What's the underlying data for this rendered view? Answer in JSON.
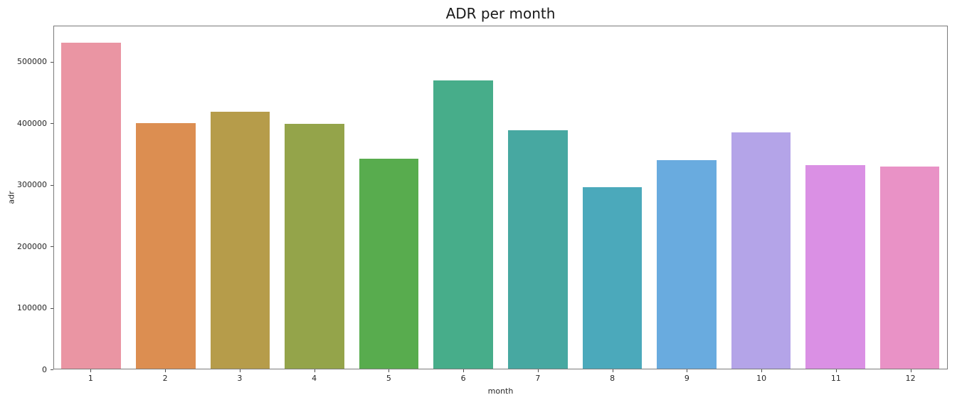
{
  "figure": {
    "title": "ADR per month"
  },
  "chart_data": {
    "type": "bar",
    "title": "ADR per month",
    "xlabel": "month",
    "ylabel": "adr",
    "categories": [
      "1",
      "2",
      "3",
      "4",
      "5",
      "6",
      "7",
      "8",
      "9",
      "10",
      "11",
      "12"
    ],
    "values": [
      532000,
      401000,
      419000,
      400000,
      343000,
      470000,
      389000,
      296000,
      340000,
      385000,
      332000,
      330000
    ],
    "bar_colors": [
      "#ea95a3",
      "#dc8e51",
      "#b69c4a",
      "#94a44a",
      "#58ac4e",
      "#47ad8a",
      "#47a8a1",
      "#4ba9bb",
      "#69abdf",
      "#b4a4e8",
      "#da90e4",
      "#e992c6"
    ],
    "ylim": [
      0,
      558600
    ],
    "yticks": [
      0,
      100000,
      200000,
      300000,
      400000,
      500000
    ],
    "ytick_labels": [
      "0",
      "100000",
      "200000",
      "300000",
      "400000",
      "500000"
    ],
    "grid": false,
    "legend": "none",
    "background_color": "#ffffff",
    "spine_color": "#7a7a7a"
  }
}
